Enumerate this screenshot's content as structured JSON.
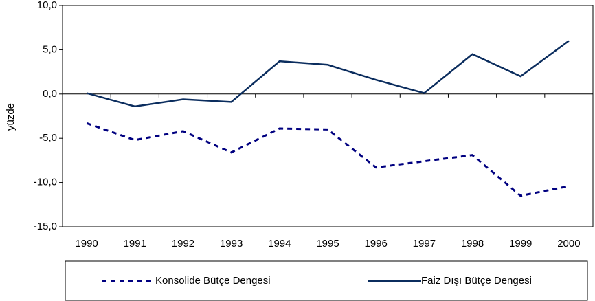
{
  "chart_data": {
    "type": "line",
    "y_label": "yüzde",
    "categories": [
      "1990",
      "1991",
      "1992",
      "1993",
      "1994",
      "1995",
      "1996",
      "1997",
      "1998",
      "1999",
      "2000"
    ],
    "series": [
      {
        "name": "Konsolide Bütçe Dengesi",
        "color": "#000080",
        "dashed": true,
        "values": [
          -3.3,
          -5.2,
          -4.2,
          -6.6,
          -3.9,
          -4.0,
          -8.3,
          -7.6,
          -6.9,
          -11.5,
          -10.4
        ]
      },
      {
        "name": "Faiz Dışı Bütçe Dengesi",
        "color": "#0b2d5e",
        "dashed": false,
        "values": [
          0.1,
          -1.4,
          -0.6,
          -0.9,
          3.7,
          3.3,
          1.6,
          0.1,
          4.5,
          2.0,
          6.0
        ]
      }
    ],
    "ylim": [
      -15,
      10
    ],
    "yticks": [
      {
        "value": -15,
        "label": "-15,0"
      },
      {
        "value": -10,
        "label": "-10,0"
      },
      {
        "value": -5,
        "label": "-5,0"
      },
      {
        "value": 0,
        "label": "0,0"
      },
      {
        "value": 5,
        "label": "5,0"
      },
      {
        "value": 10,
        "label": "10,0"
      }
    ],
    "grid": false,
    "legend": "bottom"
  }
}
